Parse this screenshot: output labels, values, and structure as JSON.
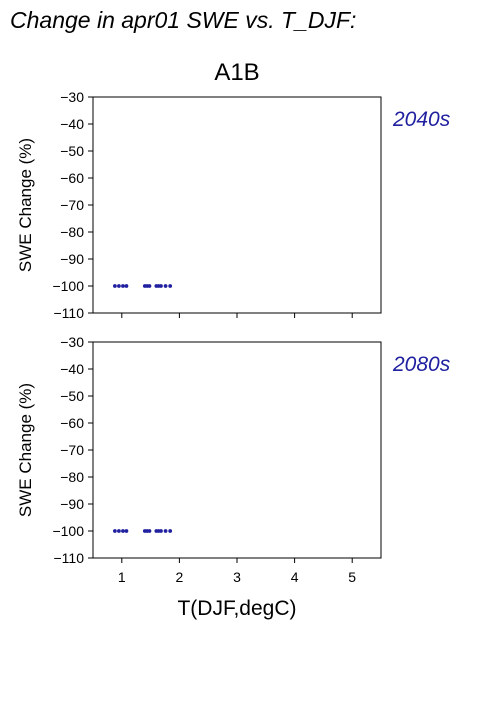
{
  "figure": {
    "title": "Change in apr01 SWE vs. T_DJF:",
    "scenario": "A1B"
  },
  "colors": {
    "points": "#2020a0",
    "period_label": "#2020a0",
    "axes": "#000000"
  },
  "chart_data": [
    {
      "type": "scatter",
      "title": "A1B",
      "period": "2040s",
      "xlabel": "",
      "ylabel": "SWE Change (%)",
      "xlim": [
        0.5,
        5.5
      ],
      "ylim": [
        -110,
        -30
      ],
      "xticks": [
        1,
        2,
        3,
        4,
        5
      ],
      "xtick_labels_shown": false,
      "yticks": [
        -30,
        -40,
        -50,
        -60,
        -70,
        -80,
        -90,
        -100,
        -110
      ],
      "grid": false,
      "points": [
        {
          "x": 0.88,
          "y": -100
        },
        {
          "x": 0.95,
          "y": -100
        },
        {
          "x": 1.02,
          "y": -100
        },
        {
          "x": 1.08,
          "y": -100
        },
        {
          "x": 1.4,
          "y": -100
        },
        {
          "x": 1.44,
          "y": -100
        },
        {
          "x": 1.48,
          "y": -100
        },
        {
          "x": 1.6,
          "y": -100
        },
        {
          "x": 1.64,
          "y": -100
        },
        {
          "x": 1.68,
          "y": -100
        },
        {
          "x": 1.76,
          "y": -100
        },
        {
          "x": 1.84,
          "y": -100
        }
      ]
    },
    {
      "type": "scatter",
      "title": "",
      "period": "2080s",
      "xlabel": "T(DJF,degC)",
      "ylabel": "SWE Change (%)",
      "xlim": [
        0.5,
        5.5
      ],
      "ylim": [
        -110,
        -30
      ],
      "xticks": [
        1,
        2,
        3,
        4,
        5
      ],
      "xtick_labels_shown": true,
      "yticks": [
        -30,
        -40,
        -50,
        -60,
        -70,
        -80,
        -90,
        -100,
        -110
      ],
      "grid": false,
      "points": [
        {
          "x": 0.88,
          "y": -100
        },
        {
          "x": 0.95,
          "y": -100
        },
        {
          "x": 1.02,
          "y": -100
        },
        {
          "x": 1.08,
          "y": -100
        },
        {
          "x": 1.4,
          "y": -100
        },
        {
          "x": 1.44,
          "y": -100
        },
        {
          "x": 1.48,
          "y": -100
        },
        {
          "x": 1.6,
          "y": -100
        },
        {
          "x": 1.64,
          "y": -100
        },
        {
          "x": 1.68,
          "y": -100
        },
        {
          "x": 1.76,
          "y": -100
        },
        {
          "x": 1.84,
          "y": -100
        }
      ]
    }
  ]
}
